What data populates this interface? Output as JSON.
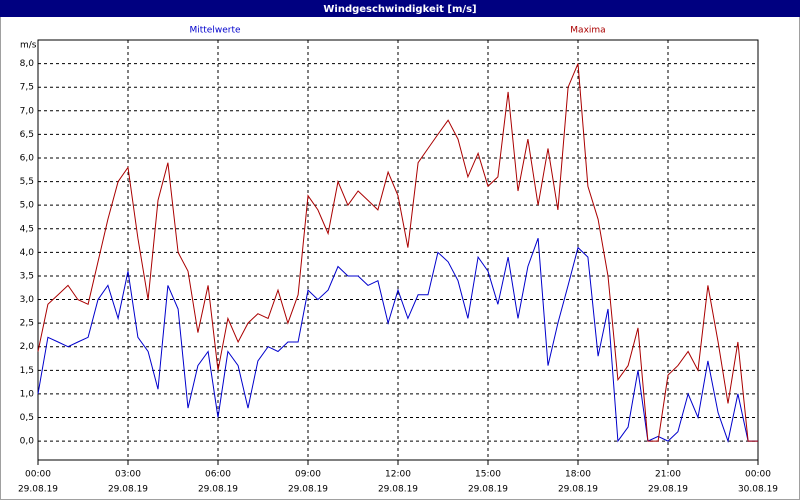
{
  "chart_data": {
    "type": "line",
    "title": "Windgeschwindigkeit [m/s]",
    "y_unit": "m/s",
    "grid": true,
    "xlim": [
      0,
      24
    ],
    "ylim": [
      -0.4,
      8.5
    ],
    "xticks": [
      {
        "value": 0,
        "label": "00:00"
      },
      {
        "value": 3,
        "label": "03:00"
      },
      {
        "value": 6,
        "label": "06:00"
      },
      {
        "value": 9,
        "label": "09:00"
      },
      {
        "value": 12,
        "label": "12:00"
      },
      {
        "value": 15,
        "label": "15:00"
      },
      {
        "value": 18,
        "label": "18:00"
      },
      {
        "value": 21,
        "label": "21:00"
      },
      {
        "value": 24,
        "label": "00:00"
      }
    ],
    "xtick_dates": [
      "29.08.19",
      "29.08.19",
      "29.08.19",
      "29.08.19",
      "29.08.19",
      "29.08.19",
      "29.08.19",
      "29.08.19",
      "30.08.19"
    ],
    "yticks": [
      {
        "value": 0,
        "label": "0,0"
      },
      {
        "value": 0.5,
        "label": "0,5"
      },
      {
        "value": 1,
        "label": "1,0"
      },
      {
        "value": 1.5,
        "label": "1,5"
      },
      {
        "value": 2,
        "label": "2,0"
      },
      {
        "value": 2.5,
        "label": "2,5"
      },
      {
        "value": 3,
        "label": "3,0"
      },
      {
        "value": 3.5,
        "label": "3,5"
      },
      {
        "value": 4,
        "label": "4,0"
      },
      {
        "value": 4.5,
        "label": "4,5"
      },
      {
        "value": 5,
        "label": "5,0"
      },
      {
        "value": 5.5,
        "label": "5,5"
      },
      {
        "value": 6,
        "label": "6,0"
      },
      {
        "value": 6.5,
        "label": "6,5"
      },
      {
        "value": 7,
        "label": "7,0"
      },
      {
        "value": 7.5,
        "label": "7,5"
      },
      {
        "value": 8,
        "label": "8,0"
      }
    ],
    "x": [
      0,
      0.33,
      0.67,
      1,
      1.33,
      1.67,
      2,
      2.33,
      2.67,
      3,
      3.33,
      3.67,
      4,
      4.33,
      4.67,
      5,
      5.33,
      5.67,
      6,
      6.33,
      6.67,
      7,
      7.33,
      7.67,
      8,
      8.33,
      8.67,
      9,
      9.33,
      9.67,
      10,
      10.33,
      10.67,
      11,
      11.33,
      11.67,
      12,
      12.33,
      12.67,
      13,
      13.33,
      13.67,
      14,
      14.33,
      14.67,
      15,
      15.33,
      15.67,
      16,
      16.33,
      16.67,
      17,
      17.33,
      17.67,
      18,
      18.33,
      18.67,
      19,
      19.33,
      19.67,
      20,
      20.33,
      20.67,
      21,
      21.33,
      21.67,
      22,
      22.33,
      22.67,
      23,
      23.33,
      23.67,
      24
    ],
    "series": [
      {
        "name": "Mittelwerte",
        "color": "#0000cc",
        "values": [
          1.0,
          2.2,
          2.1,
          2.0,
          2.1,
          2.2,
          3.0,
          3.3,
          2.6,
          3.6,
          2.2,
          1.9,
          1.1,
          3.3,
          2.8,
          0.7,
          1.6,
          1.9,
          0.5,
          1.9,
          1.6,
          0.7,
          1.7,
          2.0,
          1.9,
          2.1,
          2.1,
          3.2,
          3.0,
          3.2,
          3.7,
          3.5,
          3.5,
          3.3,
          3.4,
          2.5,
          3.2,
          2.6,
          3.1,
          3.1,
          4.0,
          3.8,
          3.4,
          2.6,
          3.9,
          3.6,
          2.9,
          3.9,
          2.6,
          3.7,
          4.3,
          1.6,
          2.5,
          3.3,
          4.1,
          3.9,
          1.8,
          2.8,
          0.0,
          0.3,
          1.5,
          0.0,
          0.1,
          0.0,
          0.2,
          1.0,
          0.5,
          1.7,
          0.6,
          0.0,
          1.0,
          0.0,
          0.0
        ]
      },
      {
        "name": "Maxima",
        "color": "#aa0000",
        "values": [
          1.9,
          2.9,
          3.1,
          3.3,
          3.0,
          2.9,
          3.8,
          4.7,
          5.5,
          5.8,
          4.3,
          3.0,
          5.1,
          5.9,
          4.0,
          3.6,
          2.3,
          3.3,
          1.5,
          2.6,
          2.1,
          2.5,
          2.7,
          2.6,
          3.2,
          2.5,
          3.1,
          5.2,
          4.9,
          4.4,
          5.5,
          5.0,
          5.3,
          5.1,
          4.9,
          5.7,
          5.2,
          4.1,
          5.9,
          6.2,
          6.5,
          6.8,
          6.4,
          5.6,
          6.1,
          5.4,
          5.6,
          7.4,
          5.3,
          6.4,
          5.0,
          6.2,
          4.9,
          7.5,
          8.0,
          5.4,
          4.7,
          3.5,
          1.3,
          1.6,
          2.4,
          0.0,
          0.0,
          1.4,
          1.6,
          1.9,
          1.5,
          3.3,
          2.1,
          0.8,
          2.1,
          0.0,
          0.0
        ]
      }
    ]
  }
}
